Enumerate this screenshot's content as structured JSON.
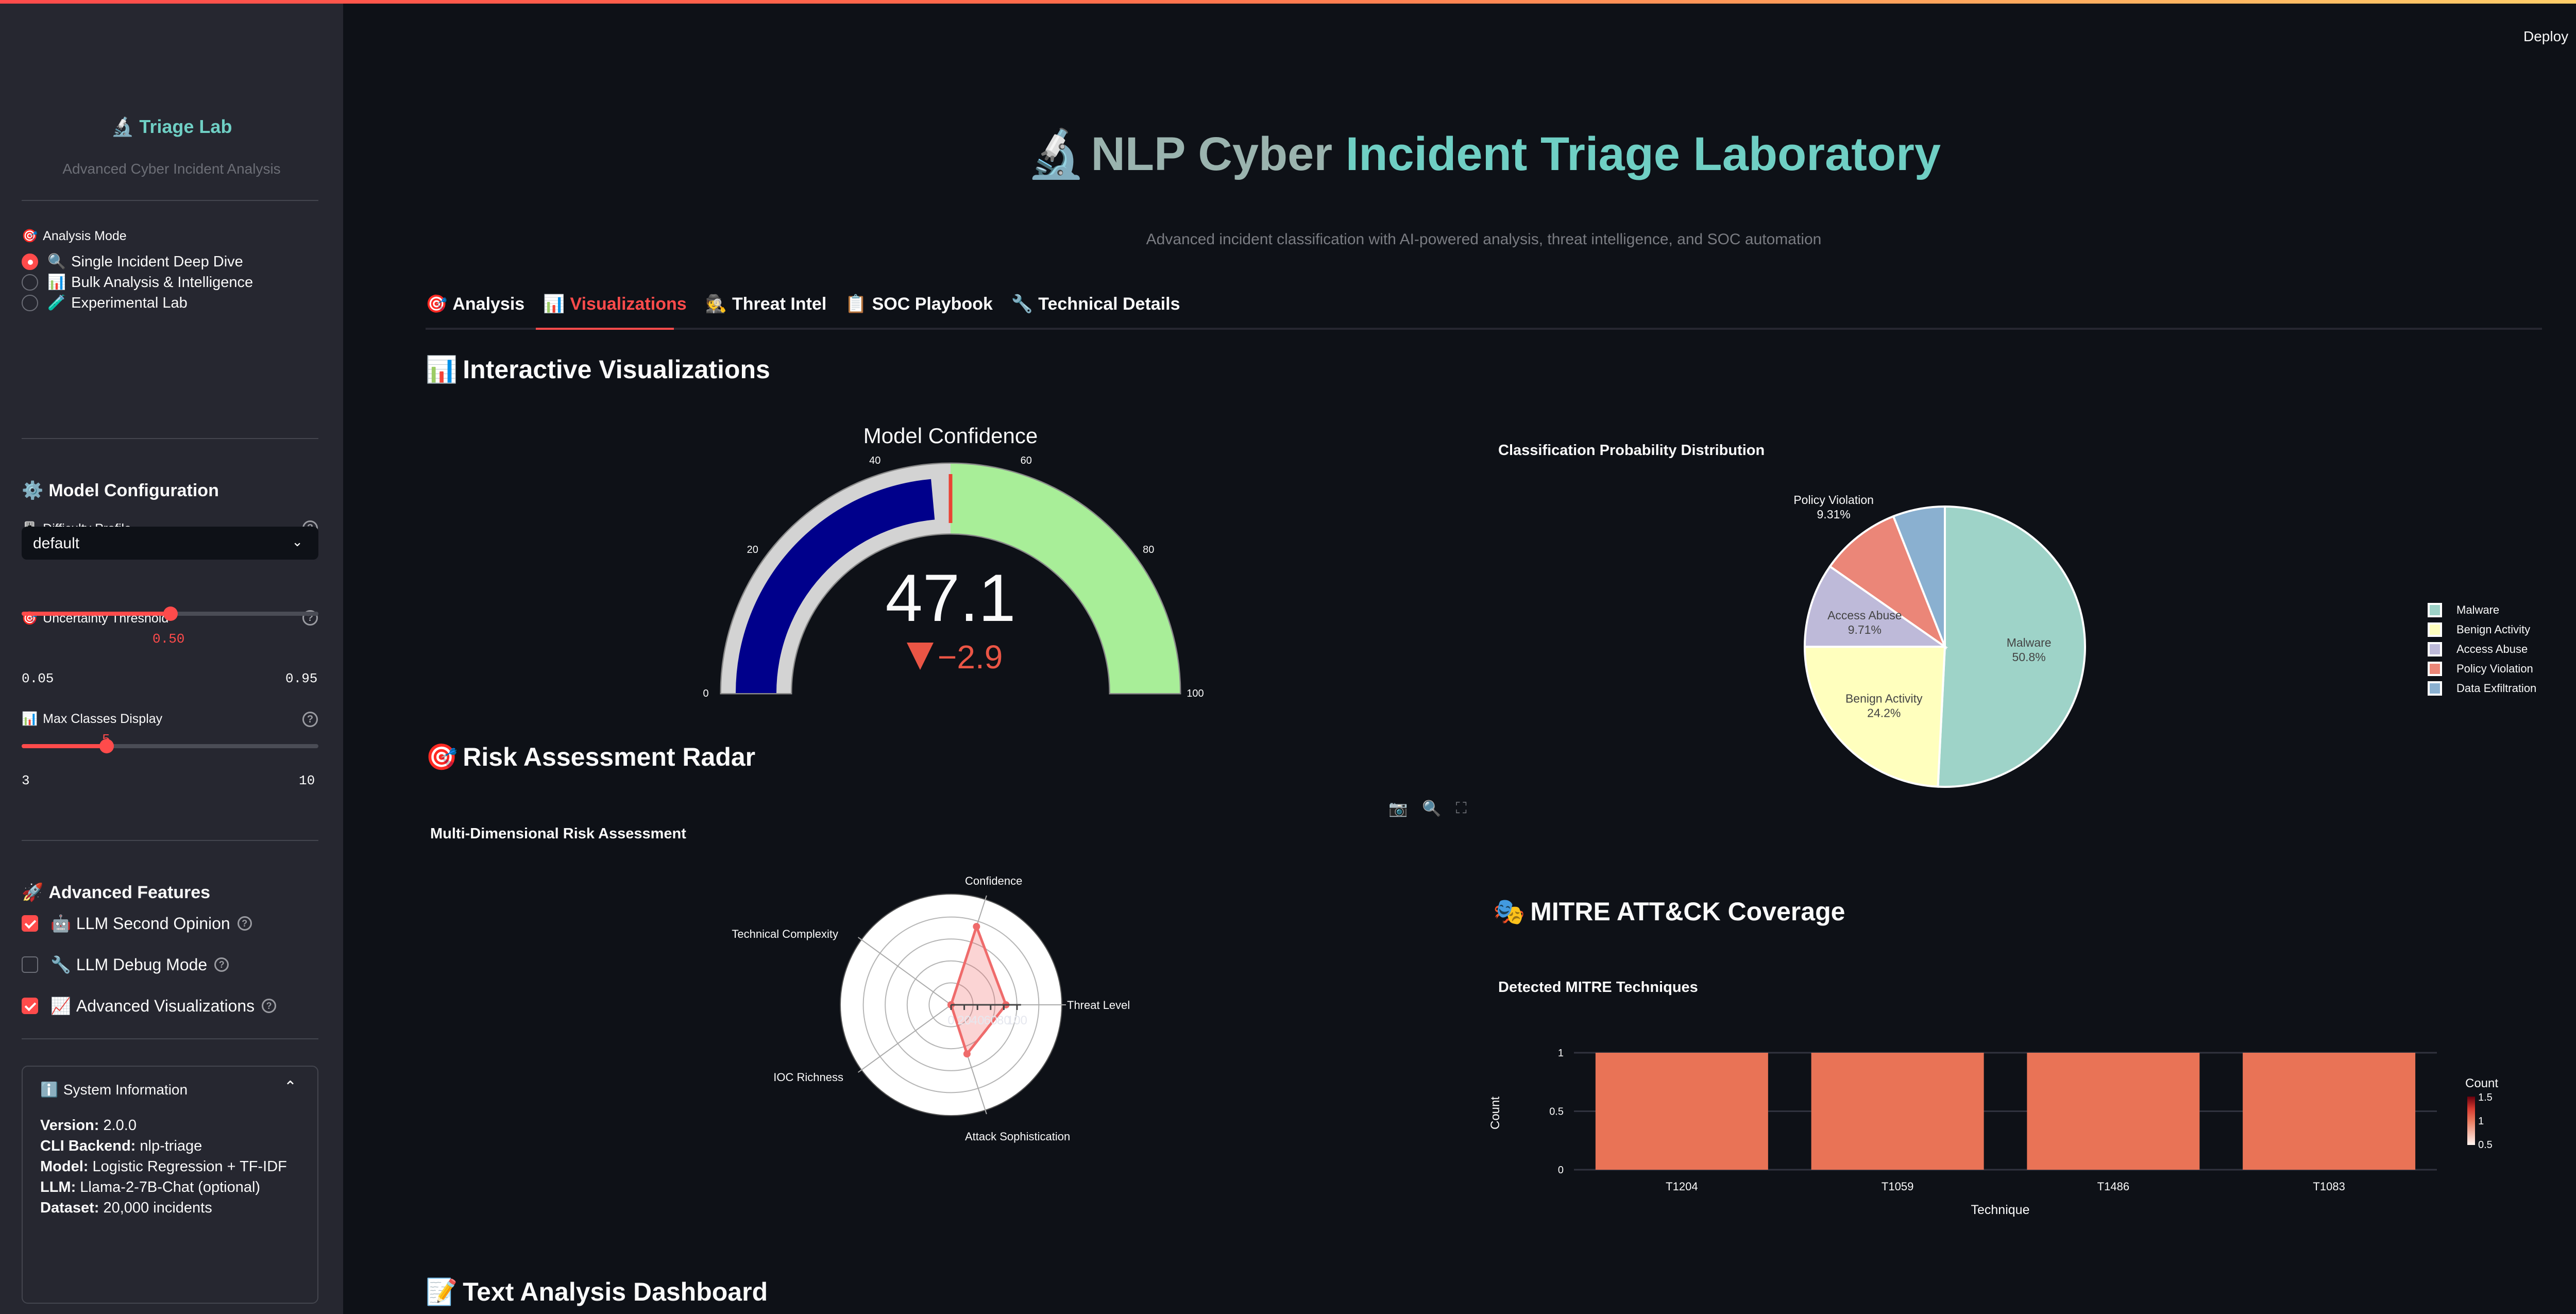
{
  "header": {
    "deploy_label": "Deploy",
    "menu_icon": "kebab-menu-icon"
  },
  "sidebar": {
    "brand_icon": "microscope-icon",
    "brand_emoji": "🔬",
    "brand_title": "Triage Lab",
    "brand_subtitle": "Advanced Cyber Incident Analysis",
    "analysis_mode": {
      "label_emoji": "🎯",
      "label": "Analysis Mode",
      "options": [
        {
          "emoji": "🔍",
          "label": "Single Incident Deep Dive",
          "selected": true
        },
        {
          "emoji": "📊",
          "label": "Bulk Analysis & Intelligence",
          "selected": false
        },
        {
          "emoji": "🧪",
          "label": "Experimental Lab",
          "selected": false
        }
      ]
    },
    "model_config": {
      "heading_emoji": "⚙️",
      "heading": "Model Configuration",
      "difficulty": {
        "emoji": "🎚️",
        "label": "Difficulty Profile",
        "value": "default"
      },
      "uncertainty": {
        "emoji": "🎯",
        "label": "Uncertainty Threshold",
        "value": "0.50",
        "min": "0.05",
        "max": "0.95",
        "fraction": 0.5
      },
      "max_classes": {
        "emoji": "📊",
        "label": "Max Classes Display",
        "value": "5",
        "min": "3",
        "max": "10",
        "fraction": 0.2857
      }
    },
    "advanced": {
      "heading_emoji": "🚀",
      "heading": "Advanced Features",
      "options": [
        {
          "emoji": "🤖",
          "label": "LLM Second Opinion",
          "checked": true
        },
        {
          "emoji": "🔧",
          "label": "LLM Debug Mode",
          "checked": false
        },
        {
          "emoji": "📈",
          "label": "Advanced Visualizations",
          "checked": true
        }
      ]
    },
    "system_info": {
      "emoji": "ℹ️",
      "title": "System Information",
      "rows": [
        {
          "key": "Version:",
          "value": " 2.0.0"
        },
        {
          "key": "CLI Backend:",
          "value": " nlp-triage"
        },
        {
          "key": "Model:",
          "value": " Logistic Regression + TF-IDF"
        },
        {
          "key": "LLM:",
          "value": " Llama-2-7B-Chat (optional)"
        },
        {
          "key": "Dataset:",
          "value": " 20,000 incidents"
        }
      ]
    }
  },
  "main": {
    "title_emoji": "🔬",
    "title_part1": "NLP Cyber",
    "title_part2": " Incident Triage Laboratory",
    "subtitle": "Advanced incident classification with AI-powered analysis, threat intelligence, and SOC automation",
    "tabs": [
      {
        "emoji": "🎯",
        "label": "Analysis",
        "active": false
      },
      {
        "emoji": "📊",
        "label": "Visualizations",
        "active": true
      },
      {
        "emoji": "🕵️",
        "label": "Threat Intel",
        "active": false
      },
      {
        "emoji": "📋",
        "label": "SOC Playbook",
        "active": false
      },
      {
        "emoji": "🔧",
        "label": "Technical Details",
        "active": false
      }
    ],
    "section_interactive": {
      "emoji": "📊",
      "label": "Interactive Visualizations"
    },
    "section_radar": {
      "emoji": "🎯",
      "label": "Risk Assessment Radar"
    },
    "section_mitre": {
      "emoji": "🎭",
      "label": "MITRE ATT&CK Coverage"
    },
    "section_text": {
      "emoji": "📝",
      "label": "Text Analysis Dashboard"
    },
    "modebar": [
      "camera-icon",
      "zoom-icon",
      "fullscreen-icon"
    ]
  },
  "colors": {
    "accent": "#ff4b4b",
    "teal": "#6fcfc4",
    "sidebar_bg": "#262730",
    "main_bg": "#0e1117",
    "gauge_bar": "#00008b",
    "gauge_low_band": "#d3d3d3",
    "gauge_high_band": "#a8ee98",
    "bar": "#e97356"
  },
  "chart_data": [
    {
      "type": "gauge",
      "title": "Model Confidence",
      "value": 47.1,
      "display_value": "47.1",
      "delta": "−2.9",
      "reference": 50,
      "range": [
        0,
        100
      ],
      "ticks": [
        "0",
        "20",
        "40",
        "60",
        "80",
        "100"
      ],
      "steps": [
        {
          "range": [
            0,
            50
          ],
          "color": "#d3d3d3"
        },
        {
          "range": [
            50,
            100
          ],
          "color": "#a8ee98"
        }
      ],
      "threshold": 50
    },
    {
      "type": "pie",
      "title": "Classification Probability Distribution",
      "categories": [
        "Malware",
        "Benign Activity",
        "Access Abuse",
        "Policy Violation",
        "Data Exfiltration"
      ],
      "values": [
        50.8,
        24.2,
        9.71,
        9.31,
        5.99
      ],
      "labels": [
        "50.8%",
        "24.2%",
        "9.71%",
        "9.31%",
        "5.99%"
      ],
      "colors": [
        "#9ed3c8",
        "#ffffbe",
        "#bebad9",
        "#eb8678",
        "#8ab0d0"
      ],
      "legend_position": "right"
    },
    {
      "type": "radar",
      "title": "Multi-Dimensional Risk Assessment",
      "categories": [
        "Threat Level",
        "Confidence",
        "Technical Complexity",
        "IOC Richness",
        "Attack Sophistication"
      ],
      "values": [
        50,
        47,
        0,
        0,
        75
      ],
      "radial_ticks": [
        "0",
        "20",
        "40",
        "60",
        "80",
        "100"
      ],
      "range": [
        0,
        100
      ]
    },
    {
      "type": "bar",
      "title": "Detected MITRE Techniques",
      "categories": [
        "T1204",
        "T1059",
        "T1486",
        "T1083"
      ],
      "values": [
        1,
        1,
        1,
        1
      ],
      "xlabel": "Technique",
      "ylabel": "Count",
      "yticks": [
        "0",
        "0.5",
        "1"
      ],
      "ylim": [
        0,
        1
      ],
      "colorbar": {
        "title": "Count",
        "ticks": [
          "1.5",
          "1",
          "0.5"
        ]
      }
    }
  ]
}
